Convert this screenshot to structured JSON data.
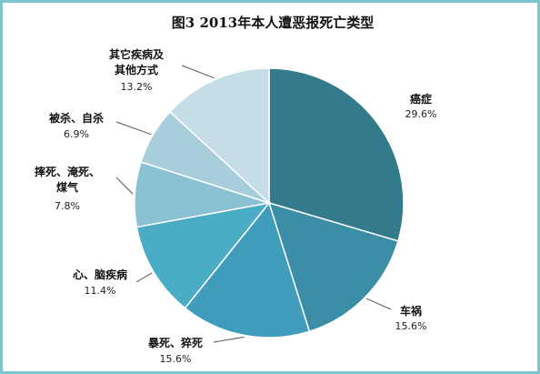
{
  "chart_data": {
    "type": "pie",
    "title": "图3   2013年本人遭恶报死亡类型",
    "slices": [
      {
        "name": "癌症",
        "value": 29.6,
        "label": "29.6%",
        "color": "#327a8c"
      },
      {
        "name": "车祸",
        "value": 15.6,
        "label": "15.6%",
        "color": "#3b8ea5"
      },
      {
        "name": "暴死、猝死",
        "value": 15.6,
        "label": "15.6%",
        "color": "#3f9dbb"
      },
      {
        "name": "心、脑疾病",
        "value": 11.4,
        "label": "11.4%",
        "color": "#4bacc6"
      },
      {
        "name": "摔死、淹死、煤气",
        "value": 7.8,
        "label": "7.8%",
        "color": "#8bc1d4"
      },
      {
        "name": "被杀、自杀",
        "value": 6.9,
        "label": "6.9%",
        "color": "#a8cedc"
      },
      {
        "name": "其它疾病及其他方式",
        "value": 13.2,
        "label": "13.2%",
        "color": "#c5dde6"
      }
    ],
    "legend": "none"
  },
  "colors": {
    "frame_border": "#7cc7cc",
    "background": "#ffffff"
  }
}
